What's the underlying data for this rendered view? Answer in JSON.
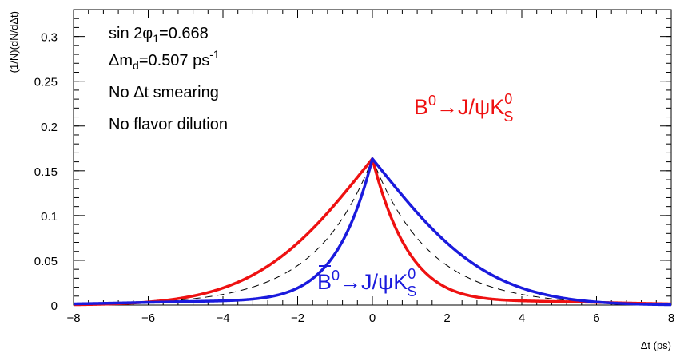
{
  "chart_data": {
    "type": "line",
    "title": "",
    "xlabel": "Δt (ps)",
    "ylabel": "(1/N)(dN/dΔt)",
    "xlim": [
      -8,
      8
    ],
    "ylim": [
      0,
      0.33
    ],
    "x_ticks": [
      -8,
      -6,
      -4,
      -2,
      0,
      2,
      4,
      6,
      8
    ],
    "x_tick_labels": [
      "−8",
      "−6",
      "−4",
      "−2",
      "0",
      "2",
      "4",
      "6",
      "8"
    ],
    "y_ticks": [
      0,
      0.05,
      0.1,
      0.15,
      0.2,
      0.25,
      0.3
    ],
    "y_tick_labels": [
      "0",
      "0.05",
      "0.1",
      "0.15",
      "0.2",
      "0.25",
      "0.3"
    ],
    "grid": false,
    "model": {
      "tau_ps": 1.53,
      "delta_md": 0.507,
      "sin2phi1": 0.668,
      "x_range": [
        -8,
        8
      ]
    },
    "series": [
      {
        "name": "B0 → J/ψ K0S",
        "style": "solid",
        "color": "#ee1111",
        "q": 1,
        "label": {
          "main": "B",
          "sup": "0",
          "arrow": "→J/ψK",
          "kaon_sup": "0",
          "kaon_sub": "S"
        }
      },
      {
        "name": "B̄0 → J/ψ K0S",
        "style": "solid",
        "color": "#1a1add",
        "q": -1,
        "label": {
          "main": "B",
          "sup": "0",
          "arrow": "→J/ψK",
          "kaon_sup": "0",
          "kaon_sub": "S",
          "bar": true
        }
      },
      {
        "name": "",
        "style": "dashed",
        "color": "#000000",
        "q": 0
      }
    ],
    "annotations": {
      "sin2phi": {
        "pre": "sin 2φ",
        "sub": "1",
        "post": "=0.668"
      },
      "dmd": {
        "pre": "Δm",
        "sub": "d",
        "post": "=0.507 ps",
        "sup": "-1"
      },
      "smearing": "No Δt smearing",
      "dilution": "No flavor dilution"
    }
  }
}
